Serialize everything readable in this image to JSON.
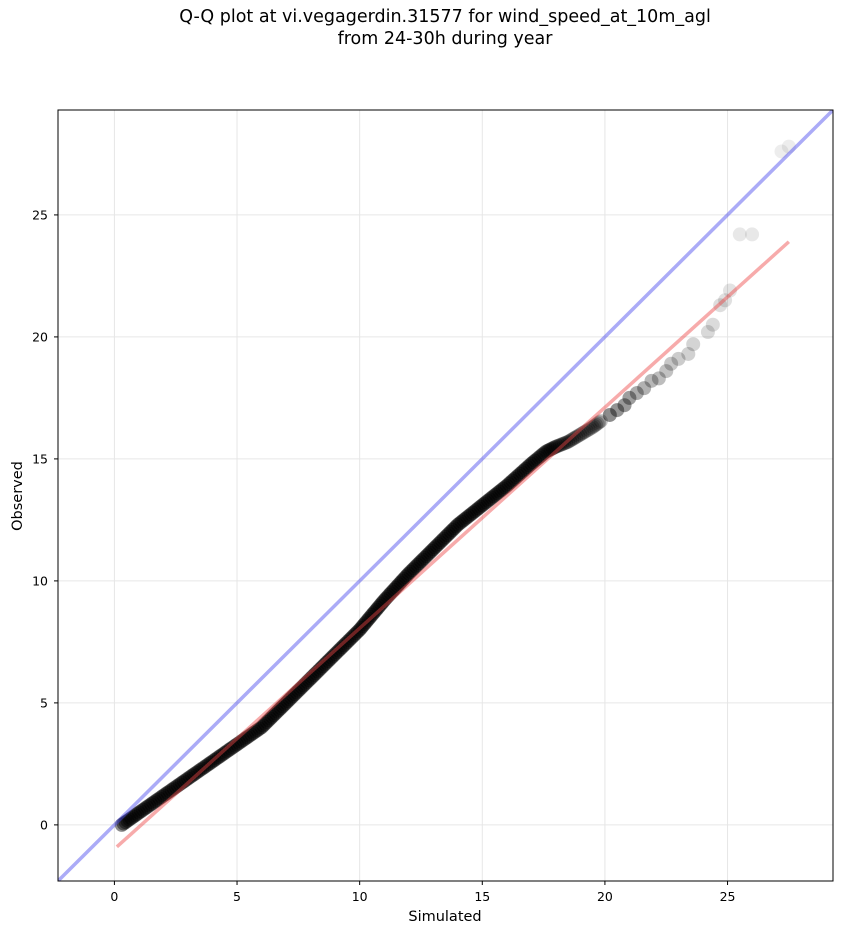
{
  "chart_data": {
    "type": "scatter",
    "title_lines": [
      "Q-Q plot at vi.vegagerdin.31577 for wind_speed_at_10m_agl",
      "from 24-30h during year"
    ],
    "xlabel": "Simulated",
    "ylabel": "Observed",
    "xlim": [
      -2.3,
      29.3
    ],
    "ylim": [
      -2.3,
      29.3
    ],
    "xticks": [
      0,
      5,
      10,
      15,
      20,
      25
    ],
    "yticks": [
      0,
      5,
      10,
      15,
      20,
      25
    ],
    "grid": true,
    "colors": {
      "points": "#000000",
      "identity_line": "#4444ee",
      "fit_line": "#ee4444",
      "grid": "#e6e6e6"
    },
    "identity_line": {
      "x": [
        -2.3,
        29.3
      ],
      "y": [
        -2.3,
        29.3
      ]
    },
    "fit_line": {
      "x": [
        0.1,
        27.5
      ],
      "y": [
        -0.9,
        23.9
      ]
    },
    "curve_points": [
      [
        0.3,
        0.0
      ],
      [
        1.0,
        0.5
      ],
      [
        2.0,
        1.2
      ],
      [
        3.0,
        1.9
      ],
      [
        4.0,
        2.6
      ],
      [
        5.0,
        3.3
      ],
      [
        6.0,
        4.0
      ],
      [
        7.0,
        5.0
      ],
      [
        8.0,
        6.0
      ],
      [
        9.0,
        7.0
      ],
      [
        10.0,
        8.0
      ],
      [
        11.0,
        9.2
      ],
      [
        12.0,
        10.3
      ],
      [
        13.0,
        11.3
      ],
      [
        14.0,
        12.3
      ],
      [
        15.0,
        13.1
      ],
      [
        16.0,
        13.9
      ],
      [
        17.0,
        14.8
      ],
      [
        17.6,
        15.3
      ],
      [
        18.0,
        15.5
      ],
      [
        18.5,
        15.7
      ],
      [
        19.0,
        16.0
      ],
      [
        19.5,
        16.3
      ],
      [
        19.9,
        16.6
      ]
    ],
    "tail_points": [
      {
        "x": 20.2,
        "y": 16.8,
        "alpha": 0.45
      },
      {
        "x": 20.5,
        "y": 17.0,
        "alpha": 0.42
      },
      {
        "x": 20.8,
        "y": 17.2,
        "alpha": 0.4
      },
      {
        "x": 21.0,
        "y": 17.5,
        "alpha": 0.38
      },
      {
        "x": 21.3,
        "y": 17.7,
        "alpha": 0.33
      },
      {
        "x": 21.6,
        "y": 17.9,
        "alpha": 0.3
      },
      {
        "x": 21.9,
        "y": 18.2,
        "alpha": 0.28
      },
      {
        "x": 22.2,
        "y": 18.3,
        "alpha": 0.26
      },
      {
        "x": 22.5,
        "y": 18.6,
        "alpha": 0.24
      },
      {
        "x": 22.7,
        "y": 18.9,
        "alpha": 0.22
      },
      {
        "x": 23.0,
        "y": 19.1,
        "alpha": 0.2
      },
      {
        "x": 23.4,
        "y": 19.3,
        "alpha": 0.18
      },
      {
        "x": 23.6,
        "y": 19.7,
        "alpha": 0.17
      },
      {
        "x": 24.2,
        "y": 20.2,
        "alpha": 0.15
      },
      {
        "x": 24.4,
        "y": 20.5,
        "alpha": 0.14
      },
      {
        "x": 24.7,
        "y": 21.3,
        "alpha": 0.13
      },
      {
        "x": 24.9,
        "y": 21.5,
        "alpha": 0.12
      },
      {
        "x": 25.1,
        "y": 21.9,
        "alpha": 0.11
      },
      {
        "x": 25.5,
        "y": 24.2,
        "alpha": 0.09
      },
      {
        "x": 26.0,
        "y": 24.2,
        "alpha": 0.09
      },
      {
        "x": 27.2,
        "y": 27.6,
        "alpha": 0.07
      },
      {
        "x": 27.5,
        "y": 27.8,
        "alpha": 0.07
      }
    ]
  }
}
